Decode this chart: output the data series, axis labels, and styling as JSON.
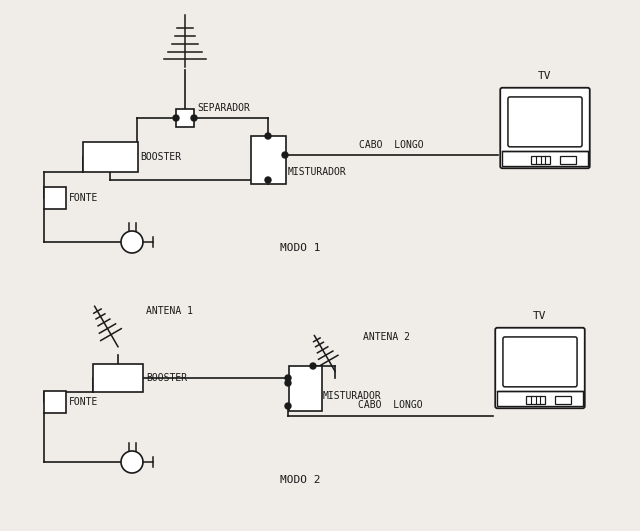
{
  "bg_color": "#f0ede8",
  "line_color": "#1a1a1a",
  "modo1_label": "MODO 1",
  "modo2_label": "MODO 2",
  "tv_label": "TV",
  "separador_label": "SEPARADOR",
  "booster_label": "BOOSTER",
  "misturador_label": "MISTURADOR",
  "fonte_label": "FONTE",
  "cabo_longo_label": "CABO  LONGO",
  "antena1_label": "ANTENA 1",
  "antena2_label": "ANTENA 2"
}
